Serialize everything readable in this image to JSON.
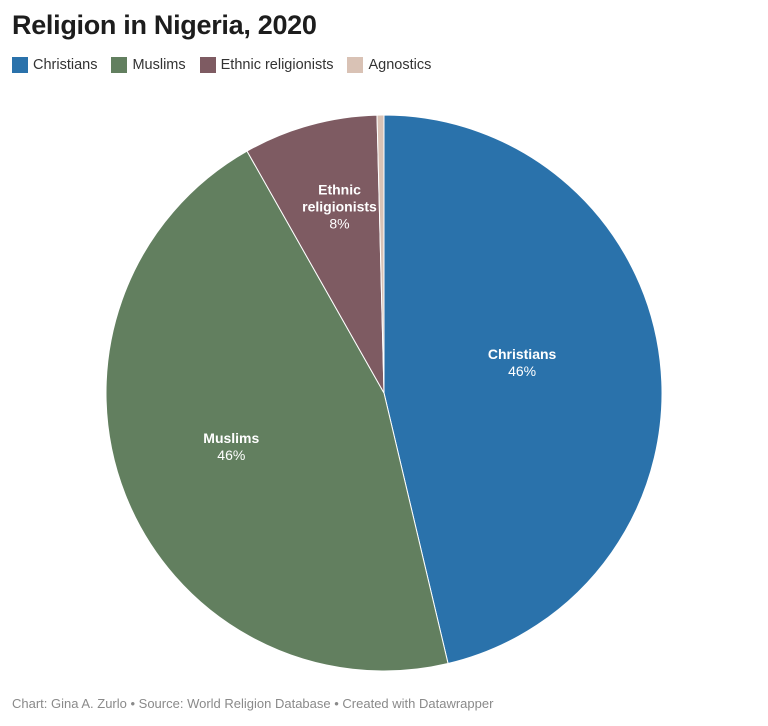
{
  "title": "Religion in Nigeria, 2020",
  "footer": "Chart: Gina A. Zurlo • Source: World Religion Database • Created with Datawrapper",
  "chart_data": {
    "type": "pie",
    "title": "Religion in Nigeria, 2020",
    "legend_position": "top-left",
    "start_angle_deg": 0,
    "direction": "clockwise",
    "slices": [
      {
        "name": "Christians",
        "value": 46.3,
        "label": "46%",
        "color": "#2a72ab"
      },
      {
        "name": "Muslims",
        "value": 45.5,
        "label": "46%",
        "color": "#627f5f"
      },
      {
        "name": "Ethnic religionists",
        "value": 7.8,
        "label": "8%",
        "color": "#7e5b62"
      },
      {
        "name": "Agnostics",
        "value": 0.4,
        "label": "",
        "color": "#d9c2b5"
      }
    ]
  }
}
